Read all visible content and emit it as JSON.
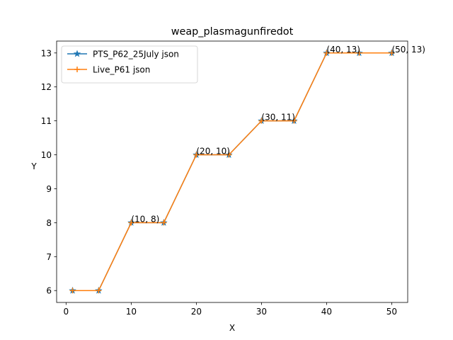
{
  "chart_data": {
    "type": "line",
    "title": "weap_plasmagunfiredot",
    "xlabel": "X",
    "ylabel": "Y",
    "xlim": [
      -1.45,
      52.45
    ],
    "ylim": [
      5.65,
      13.35
    ],
    "xticks": [
      0,
      10,
      20,
      30,
      40,
      50
    ],
    "yticks": [
      6,
      7,
      8,
      9,
      10,
      11,
      12,
      13
    ],
    "grid": false,
    "legend_position": "top-left",
    "series": [
      {
        "name": "PTS_P62_25July json",
        "color": "#1f77b4",
        "marker": "star",
        "x": [
          1,
          5,
          10,
          15,
          20,
          25,
          30,
          35,
          40,
          45,
          50
        ],
        "y": [
          6,
          6,
          8,
          8,
          10,
          10,
          11,
          11,
          13,
          13,
          13
        ]
      },
      {
        "name": "Live_P61 json",
        "color": "#ff7f0e",
        "marker": "plus",
        "x": [
          1,
          5,
          10,
          15,
          20,
          25,
          30,
          35,
          40,
          45,
          50
        ],
        "y": [
          6,
          6,
          8,
          8,
          10,
          10,
          11,
          11,
          13,
          13,
          13
        ]
      }
    ],
    "annotations": [
      {
        "x": 10,
        "y": 8,
        "text": "(10, 8)"
      },
      {
        "x": 20,
        "y": 10,
        "text": "(20, 10)"
      },
      {
        "x": 30,
        "y": 11,
        "text": "(30, 11)"
      },
      {
        "x": 40,
        "y": 13,
        "text": "(40, 13)"
      },
      {
        "x": 50,
        "y": 13,
        "text": "(50, 13)"
      }
    ]
  }
}
